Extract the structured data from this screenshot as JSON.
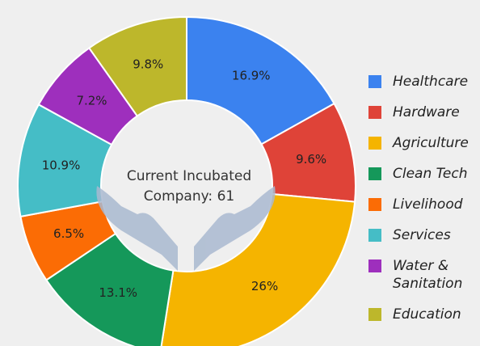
{
  "chart_data": {
    "type": "donut",
    "categories": [
      "Healthcare",
      "Hardware",
      "Agriculture",
      "Clean Tech",
      "Livelihood",
      "Services",
      "Water & Sanitation",
      "Education"
    ],
    "values": [
      16.9,
      9.6,
      26,
      13.1,
      6.5,
      10.9,
      7.2,
      9.8
    ],
    "value_labels": [
      "16.9%",
      "9.6%",
      "26%",
      "13.1%",
      "6.5%",
      "10.9%",
      "7.2%",
      "9.8%"
    ],
    "colors": [
      "#3b82ef",
      "#df4338",
      "#f5b400",
      "#15985a",
      "#fb6c05",
      "#45bdc6",
      "#9e2fbd",
      "#bdb72b"
    ],
    "center_text": [
      "Current Incubated",
      "Company: 61"
    ],
    "legend": "right"
  }
}
